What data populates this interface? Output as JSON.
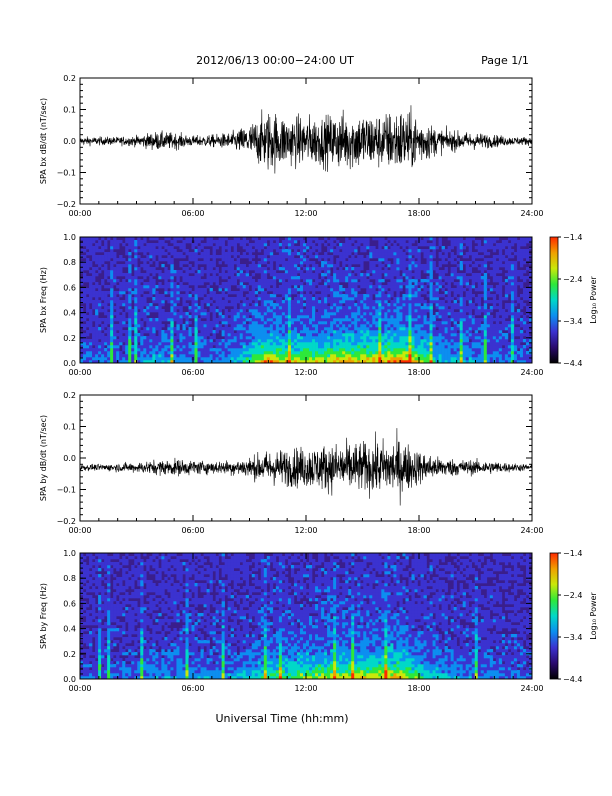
{
  "header": {
    "title": "2012/06/13  00:00−24:00 UT",
    "page": "Page 1/1"
  },
  "footer": {
    "xlabel": "Universal Time (hh:mm)"
  },
  "x_ticks": [
    "00:00",
    "06:00",
    "12:00",
    "18:00",
    "24:00"
  ],
  "colors": {
    "background": "#ffffff",
    "ink": "#000000",
    "spectrogram_base": "#3a1e8c",
    "colorbar": [
      "#000000",
      "#2a0a6e",
      "#3b32d0",
      "#0c8ef0",
      "#00d8c8",
      "#2ee83a",
      "#c9e80a",
      "#f0a000",
      "#ff2a00"
    ]
  },
  "chart_data": [
    {
      "type": "line",
      "id": "bx-timeseries",
      "ylabel": "SPA bx dB/dt (nT/sec)",
      "ylim": [
        -0.2,
        0.2
      ],
      "yticks": [
        "0.2",
        "0.1",
        "0.0",
        "−0.1",
        "−0.2"
      ],
      "ytick_values": [
        0.2,
        0.1,
        0.0,
        -0.1,
        -0.2
      ],
      "xlim": [
        0,
        24
      ],
      "x_hours": [
        0,
        1,
        2,
        3,
        4,
        5,
        6,
        7,
        8,
        9,
        10,
        11,
        12,
        13,
        14,
        15,
        16,
        17,
        18,
        19,
        20,
        21,
        22,
        23,
        24
      ],
      "envelope": [
        0.02,
        0.02,
        0.02,
        0.025,
        0.045,
        0.04,
        0.025,
        0.03,
        0.04,
        0.08,
        0.15,
        0.12,
        0.12,
        0.12,
        0.14,
        0.14,
        0.13,
        0.16,
        0.12,
        0.06,
        0.045,
        0.04,
        0.03,
        0.02,
        0.02
      ],
      "offset": 0.0
    },
    {
      "type": "heatmap",
      "id": "bx-spectrogram",
      "ylabel": "SPA bx Freq (Hz)",
      "ylim": [
        0,
        1.0
      ],
      "yticks": [
        "1.0",
        "0.8",
        "0.6",
        "0.4",
        "0.2",
        "0.0"
      ],
      "ytick_values": [
        1.0,
        0.8,
        0.6,
        0.4,
        0.2,
        0.0
      ],
      "xlim": [
        0,
        24
      ],
      "colorbar": {
        "label": "Log₁₀ Power",
        "ticks": [
          "−1.4",
          "−2.4",
          "−3.4",
          "−4.4"
        ],
        "tick_values": [
          -1.4,
          -2.4,
          -3.4,
          -4.4
        ]
      }
    },
    {
      "type": "line",
      "id": "by-timeseries",
      "ylabel": "SPA by dB/dt (nT/sec)",
      "ylim": [
        -0.2,
        0.2
      ],
      "yticks": [
        "0.2",
        "0.1",
        "0.0",
        "−0.1",
        "−0.2"
      ],
      "ytick_values": [
        0.2,
        0.1,
        0.0,
        -0.1,
        -0.2
      ],
      "xlim": [
        0,
        24
      ],
      "x_hours": [
        0,
        1,
        2,
        3,
        4,
        5,
        6,
        7,
        8,
        9,
        10,
        11,
        12,
        13,
        14,
        15,
        16,
        17,
        18,
        19,
        20,
        21,
        22,
        23,
        24
      ],
      "envelope": [
        0.015,
        0.015,
        0.02,
        0.025,
        0.035,
        0.04,
        0.035,
        0.03,
        0.035,
        0.05,
        0.08,
        0.09,
        0.1,
        0.11,
        0.12,
        0.12,
        0.13,
        0.14,
        0.08,
        0.05,
        0.04,
        0.035,
        0.03,
        0.02,
        0.015
      ],
      "offset": -0.03
    },
    {
      "type": "heatmap",
      "id": "by-spectrogram",
      "ylabel": "SPA by Freq (Hz)",
      "ylim": [
        0,
        1.0
      ],
      "yticks": [
        "1.0",
        "0.8",
        "0.6",
        "0.4",
        "0.2",
        "0.0"
      ],
      "ytick_values": [
        1.0,
        0.8,
        0.6,
        0.4,
        0.2,
        0.0
      ],
      "xlim": [
        0,
        24
      ],
      "colorbar": {
        "label": "Log₁₀ Power",
        "ticks": [
          "−1.4",
          "−2.4",
          "−3.4",
          "−4.4"
        ],
        "tick_values": [
          -1.4,
          -2.4,
          -3.4,
          -4.4
        ]
      }
    }
  ]
}
